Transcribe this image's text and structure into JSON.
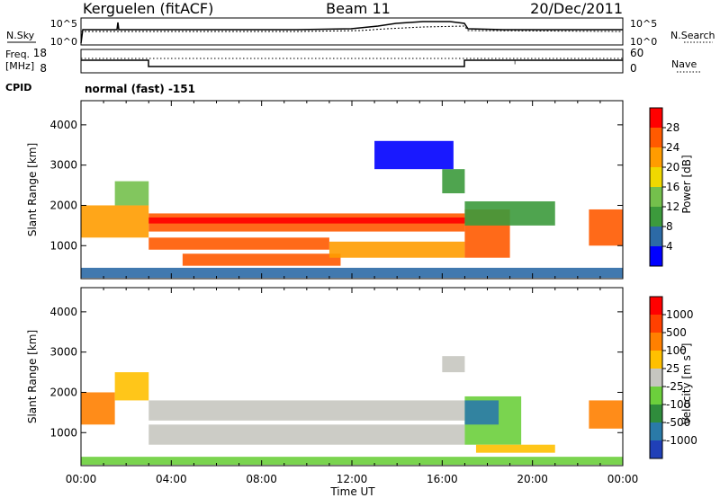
{
  "header": {
    "station": "Kerguelen (fitACF)",
    "beam": "Beam 11",
    "date": "20/Dec/2011"
  },
  "top_panels": {
    "nsky_label": "N.Sky",
    "nsky_ticks": [
      "10^5",
      "10^0"
    ],
    "nsearch_label": "N.Search",
    "nsearch_ticks": [
      "10^5",
      "10^0"
    ],
    "freq_label": "Freq.",
    "freq_unit": "[MHz]",
    "freq_ticks": [
      "18",
      "8"
    ],
    "nave_label": "Nave",
    "nave_ticks": [
      "60",
      "0"
    ],
    "cpid_label": "CPID",
    "cpid_text": "normal (fast) -151"
  },
  "colors": {
    "power_scale": [
      "#0000ff",
      "#2c6aa6",
      "#3c9a3c",
      "#74c04c",
      "#f0d800",
      "#ff9c00",
      "#ff5a00",
      "#ff0000"
    ],
    "velocity_scale": [
      "#2040b8",
      "#2a7aa8",
      "#2f8c3c",
      "#6ccf3c",
      "#c6c6c0",
      "#ffc000",
      "#ff8000",
      "#ff4000",
      "#ff0000"
    ],
    "ground_scatter": "#c6c6c0"
  },
  "chart_data": [
    {
      "type": "heatmap",
      "name": "Power",
      "ylabel": "Slant Range [km]",
      "xlabel": "Time UT",
      "xticks": [
        "00:00",
        "04:00",
        "08:00",
        "12:00",
        "16:00",
        "20:00",
        "00:00"
      ],
      "yticks": [
        "1000",
        "2000",
        "3000",
        "4000"
      ],
      "xlim_hours": [
        0,
        24
      ],
      "ylim_km": [
        180,
        4600
      ],
      "colorbar": {
        "label": "Power [dB]",
        "ticks": [
          "28",
          "24",
          "20",
          "16",
          "12",
          "8",
          "4"
        ]
      },
      "regions": [
        {
          "t0": 0.0,
          "t1": 3.0,
          "r0": 1200,
          "r1": 2000,
          "level": 5
        },
        {
          "t0": 1.5,
          "t1": 3.0,
          "r0": 2000,
          "r1": 2600,
          "level": 3
        },
        {
          "t0": 0.0,
          "t1": 24.0,
          "r0": 200,
          "r1": 450,
          "level": 1
        },
        {
          "t0": 3.0,
          "t1": 17.0,
          "r0": 1350,
          "r1": 1800,
          "level": 6
        },
        {
          "t0": 3.0,
          "t1": 17.0,
          "r0": 1550,
          "r1": 1700,
          "level": 7
        },
        {
          "t0": 3.0,
          "t1": 11.0,
          "r0": 900,
          "r1": 1200,
          "level": 6
        },
        {
          "t0": 4.5,
          "t1": 11.5,
          "r0": 500,
          "r1": 800,
          "level": 6
        },
        {
          "t0": 11.0,
          "t1": 17.0,
          "r0": 700,
          "r1": 1100,
          "level": 5
        },
        {
          "t0": 17.0,
          "t1": 19.0,
          "r0": 700,
          "r1": 1900,
          "level": 6
        },
        {
          "t0": 17.0,
          "t1": 21.0,
          "r0": 1500,
          "r1": 2100,
          "level": 2
        },
        {
          "t0": 16.0,
          "t1": 17.0,
          "r0": 2300,
          "r1": 2900,
          "level": 2
        },
        {
          "t0": 22.5,
          "t1": 24.0,
          "r0": 1000,
          "r1": 1900,
          "level": 6
        },
        {
          "t0": 13.0,
          "t1": 16.5,
          "r0": 2900,
          "r1": 3600,
          "level": 0
        }
      ]
    },
    {
      "type": "heatmap",
      "name": "Velocity",
      "ylabel": "Slant Range [km]",
      "xlabel": "Time UT",
      "xticks": [
        "00:00",
        "04:00",
        "08:00",
        "12:00",
        "16:00",
        "20:00",
        "00:00"
      ],
      "yticks": [
        "1000",
        "2000",
        "3000",
        "4000"
      ],
      "xlim_hours": [
        0,
        24
      ],
      "ylim_km": [
        180,
        4600
      ],
      "colorbar": {
        "label": "Velocity [m s-1]",
        "ticks": [
          "1000",
          "500",
          "100",
          "25",
          "-25",
          "-100",
          "-500",
          "-1000"
        ]
      },
      "regions": [
        {
          "t0": 0.0,
          "t1": 1.5,
          "r0": 1200,
          "r1": 2000,
          "level": 6
        },
        {
          "t0": 1.5,
          "t1": 3.0,
          "r0": 1800,
          "r1": 2500,
          "level": 5
        },
        {
          "t0": 3.0,
          "t1": 17.0,
          "r0": 1300,
          "r1": 1800,
          "level": 4
        },
        {
          "t0": 3.0,
          "t1": 17.0,
          "r0": 700,
          "r1": 1200,
          "level": 4
        },
        {
          "t0": 0.0,
          "t1": 24.0,
          "r0": 200,
          "r1": 400,
          "level": 3
        },
        {
          "t0": 17.0,
          "t1": 19.5,
          "r0": 700,
          "r1": 1900,
          "level": 3
        },
        {
          "t0": 17.0,
          "t1": 18.5,
          "r0": 1200,
          "r1": 1800,
          "level": 1
        },
        {
          "t0": 17.5,
          "t1": 21.0,
          "r0": 500,
          "r1": 700,
          "level": 5
        },
        {
          "t0": 22.5,
          "t1": 24.0,
          "r0": 1100,
          "r1": 1800,
          "level": 6
        },
        {
          "t0": 16.0,
          "t1": 17.0,
          "r0": 2500,
          "r1": 2900,
          "level": 4
        }
      ]
    }
  ]
}
